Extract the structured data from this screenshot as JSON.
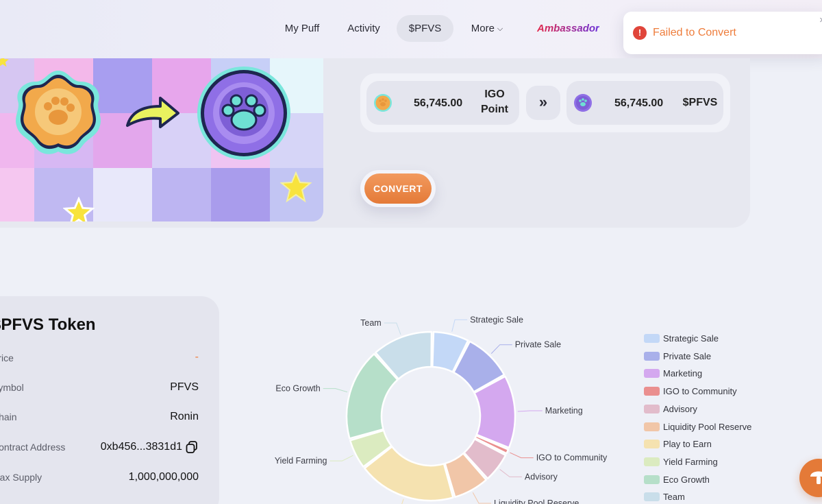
{
  "nav": {
    "items": [
      {
        "label": "My Puff"
      },
      {
        "label": "Activity"
      },
      {
        "label": "$PFVS"
      },
      {
        "label": "More"
      }
    ],
    "active_index": 2,
    "ambassador": "Ambassador"
  },
  "toast": {
    "icon": "error-icon",
    "message": "Failed to Convert",
    "close": "×",
    "color": "#ee7d3c"
  },
  "convert": {
    "from_amount": "56,745.00",
    "from_unit_line1": "IGO",
    "from_unit_line2": "Point",
    "to_amount": "56,745.00",
    "to_unit": "$PFVS",
    "swap_icon": "double-chevron-right-icon",
    "button_label": "CONVERT",
    "accent": "#e47a38"
  },
  "token": {
    "title": "$PFVS Token",
    "rows": [
      {
        "label": "Price",
        "value": "-"
      },
      {
        "label": "Symbol",
        "value": "PFVS"
      },
      {
        "label": "Chain",
        "value": "Ronin"
      },
      {
        "label": "Contract Address",
        "value": "0xb456...3831d1"
      },
      {
        "label": "Max Supply",
        "value": "1,000,000,000"
      }
    ]
  },
  "chart_data": {
    "type": "pie",
    "donut": true,
    "slices": [
      {
        "label": "Strategic Sale",
        "value": 6,
        "color": "#c3d8f7"
      },
      {
        "label": "Private Sale",
        "value": 8,
        "color": "#a9b0ea"
      },
      {
        "label": "Marketing",
        "value": 12,
        "color": "#d4a8ef"
      },
      {
        "label": "IGO to Community",
        "value": 1,
        "color": "#ea8f8f"
      },
      {
        "label": "Advisory",
        "value": 5,
        "color": "#e2bccb"
      },
      {
        "label": "Liquidity Pool Reserve",
        "value": 6,
        "color": "#f1c6a8"
      },
      {
        "label": "Play to Earn",
        "value": 16,
        "color": "#f5e2b0"
      },
      {
        "label": "Yield Farming",
        "value": 5,
        "color": "#dbebc0"
      },
      {
        "label": "Eco Growth",
        "value": 15,
        "color": "#b6dfc9"
      },
      {
        "label": "Team",
        "value": 10,
        "color": "#c9deea"
      }
    ],
    "legend_position": "right",
    "visible_callout_labels": [
      "Team",
      "Strategic Sale",
      "Private Sale",
      "Eco Growth",
      "Marketing",
      "Yield Farming",
      "IGO to Community",
      "Advisory",
      "Play to Earn",
      "Liquidity Pool Reserve"
    ],
    "callout_display_text": {
      "Play to Earn": "Play to Earn",
      "Liquidity Pool Reserve": "Liquidity Pool Reserve"
    }
  },
  "fab": {
    "icon": "mushroom-icon"
  }
}
